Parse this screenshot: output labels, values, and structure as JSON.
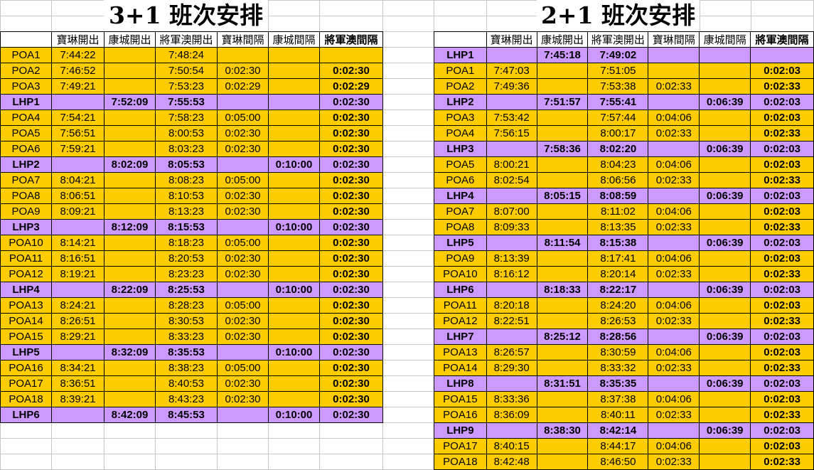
{
  "colors": {
    "poa_row": "#ffcc00",
    "lhp_row": "#cc99ff"
  },
  "headers": [
    "",
    "寶琳開出",
    "康城開出",
    "將軍澳開出",
    "寶琳間隔",
    "康城間隔",
    "將軍澳間隔"
  ],
  "tables": [
    {
      "title": "3+1 班次安排",
      "rows": [
        [
          "POA1",
          "7:44:22",
          "",
          "7:48:24",
          "",
          "",
          ""
        ],
        [
          "POA2",
          "7:46:52",
          "",
          "7:50:54",
          "0:02:30",
          "",
          "0:02:30"
        ],
        [
          "POA3",
          "7:49:21",
          "",
          "7:53:23",
          "0:02:29",
          "",
          "0:02:29"
        ],
        [
          "LHP1",
          "",
          "7:52:09",
          "7:55:53",
          "",
          "",
          "0:02:30"
        ],
        [
          "POA4",
          "7:54:21",
          "",
          "7:58:23",
          "0:05:00",
          "",
          "0:02:30"
        ],
        [
          "POA5",
          "7:56:51",
          "",
          "8:00:53",
          "0:02:30",
          "",
          "0:02:30"
        ],
        [
          "POA6",
          "7:59:21",
          "",
          "8:03:23",
          "0:02:30",
          "",
          "0:02:30"
        ],
        [
          "LHP2",
          "",
          "8:02:09",
          "8:05:53",
          "",
          "0:10:00",
          "0:02:30"
        ],
        [
          "POA7",
          "8:04:21",
          "",
          "8:08:23",
          "0:05:00",
          "",
          "0:02:30"
        ],
        [
          "POA8",
          "8:06:51",
          "",
          "8:10:53",
          "0:02:30",
          "",
          "0:02:30"
        ],
        [
          "POA9",
          "8:09:21",
          "",
          "8:13:23",
          "0:02:30",
          "",
          "0:02:30"
        ],
        [
          "LHP3",
          "",
          "8:12:09",
          "8:15:53",
          "",
          "0:10:00",
          "0:02:30"
        ],
        [
          "POA10",
          "8:14:21",
          "",
          "8:18:23",
          "0:05:00",
          "",
          "0:02:30"
        ],
        [
          "POA11",
          "8:16:51",
          "",
          "8:20:53",
          "0:02:30",
          "",
          "0:02:30"
        ],
        [
          "POA12",
          "8:19:21",
          "",
          "8:23:23",
          "0:02:30",
          "",
          "0:02:30"
        ],
        [
          "LHP4",
          "",
          "8:22:09",
          "8:25:53",
          "",
          "0:10:00",
          "0:02:30"
        ],
        [
          "POA13",
          "8:24:21",
          "",
          "8:28:23",
          "0:05:00",
          "",
          "0:02:30"
        ],
        [
          "POA14",
          "8:26:51",
          "",
          "8:30:53",
          "0:02:30",
          "",
          "0:02:30"
        ],
        [
          "POA15",
          "8:29:21",
          "",
          "8:33:23",
          "0:02:30",
          "",
          "0:02:30"
        ],
        [
          "LHP5",
          "",
          "8:32:09",
          "8:35:53",
          "",
          "0:10:00",
          "0:02:30"
        ],
        [
          "POA16",
          "8:34:21",
          "",
          "8:38:23",
          "0:05:00",
          "",
          "0:02:30"
        ],
        [
          "POA17",
          "8:36:51",
          "",
          "8:40:53",
          "0:02:30",
          "",
          "0:02:30"
        ],
        [
          "POA18",
          "8:39:21",
          "",
          "8:43:23",
          "0:02:30",
          "",
          "0:02:30"
        ],
        [
          "LHP6",
          "",
          "8:42:09",
          "8:45:53",
          "",
          "0:10:00",
          "0:02:30"
        ]
      ]
    },
    {
      "title": "2+1 班次安排",
      "rows": [
        [
          "LHP1",
          "",
          "7:45:18",
          "7:49:02",
          "",
          "",
          ""
        ],
        [
          "POA1",
          "7:47:03",
          "",
          "7:51:05",
          "",
          "",
          "0:02:03"
        ],
        [
          "POA2",
          "7:49:36",
          "",
          "7:53:38",
          "0:02:33",
          "",
          "0:02:33"
        ],
        [
          "LHP2",
          "",
          "7:51:57",
          "7:55:41",
          "",
          "0:06:39",
          "0:02:03"
        ],
        [
          "POA3",
          "7:53:42",
          "",
          "7:57:44",
          "0:04:06",
          "",
          "0:02:03"
        ],
        [
          "POA4",
          "7:56:15",
          "",
          "8:00:17",
          "0:02:33",
          "",
          "0:02:33"
        ],
        [
          "LHP3",
          "",
          "7:58:36",
          "8:02:20",
          "",
          "0:06:39",
          "0:02:03"
        ],
        [
          "POA5",
          "8:00:21",
          "",
          "8:04:23",
          "0:04:06",
          "",
          "0:02:03"
        ],
        [
          "POA6",
          "8:02:54",
          "",
          "8:06:56",
          "0:02:33",
          "",
          "0:02:33"
        ],
        [
          "LHP4",
          "",
          "8:05:15",
          "8:08:59",
          "",
          "0:06:39",
          "0:02:03"
        ],
        [
          "POA7",
          "8:07:00",
          "",
          "8:11:02",
          "0:04:06",
          "",
          "0:02:03"
        ],
        [
          "POA8",
          "8:09:33",
          "",
          "8:13:35",
          "0:02:33",
          "",
          "0:02:33"
        ],
        [
          "LHP5",
          "",
          "8:11:54",
          "8:15:38",
          "",
          "0:06:39",
          "0:02:03"
        ],
        [
          "POA9",
          "8:13:39",
          "",
          "8:17:41",
          "0:04:06",
          "",
          "0:02:03"
        ],
        [
          "POA10",
          "8:16:12",
          "",
          "8:20:14",
          "0:02:33",
          "",
          "0:02:33"
        ],
        [
          "LHP6",
          "",
          "8:18:33",
          "8:22:17",
          "",
          "0:06:39",
          "0:02:03"
        ],
        [
          "POA11",
          "8:20:18",
          "",
          "8:24:20",
          "0:04:06",
          "",
          "0:02:03"
        ],
        [
          "POA12",
          "8:22:51",
          "",
          "8:26:53",
          "0:02:33",
          "",
          "0:02:33"
        ],
        [
          "LHP7",
          "",
          "8:25:12",
          "8:28:56",
          "",
          "0:06:39",
          "0:02:03"
        ],
        [
          "POA13",
          "8:26:57",
          "",
          "8:30:59",
          "0:04:06",
          "",
          "0:02:03"
        ],
        [
          "POA14",
          "8:29:30",
          "",
          "8:33:32",
          "0:02:33",
          "",
          "0:02:33"
        ],
        [
          "LHP8",
          "",
          "8:31:51",
          "8:35:35",
          "",
          "0:06:39",
          "0:02:03"
        ],
        [
          "POA15",
          "8:33:36",
          "",
          "8:37:38",
          "0:04:06",
          "",
          "0:02:03"
        ],
        [
          "POA16",
          "8:36:09",
          "",
          "8:40:11",
          "0:02:33",
          "",
          "0:02:33"
        ],
        [
          "LHP9",
          "",
          "8:38:30",
          "8:42:14",
          "",
          "0:06:39",
          "0:02:03"
        ],
        [
          "POA17",
          "8:40:15",
          "",
          "8:44:17",
          "0:04:06",
          "",
          "0:02:03"
        ],
        [
          "POA18",
          "8:42:48",
          "",
          "8:46:50",
          "0:02:33",
          "",
          "0:02:33"
        ]
      ]
    }
  ]
}
